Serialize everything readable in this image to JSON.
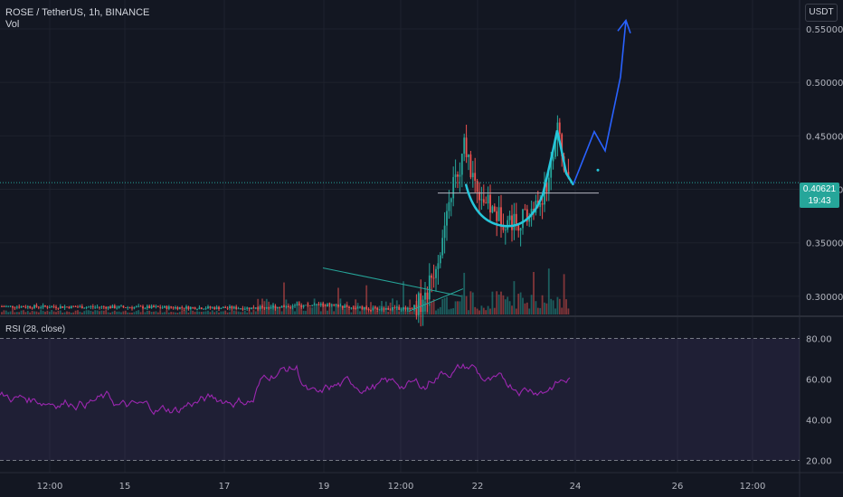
{
  "header": {
    "symbol": "ROSE / TetherUS, 1h, BINANCE",
    "volume_label": "Vol"
  },
  "currency_button": "USDT",
  "current_price": {
    "value": "0.40621",
    "countdown": "19:43"
  },
  "rsi_panel": {
    "label": "RSI (28, close)"
  },
  "colors": {
    "background": "#131722",
    "up": "#26a69a",
    "down": "#ef5350",
    "rsi_line": "#9c27b0",
    "drawing": "#2962ff",
    "cup": "#26c6da"
  },
  "chart_data": [
    {
      "type": "candlestick",
      "title": "ROSE / TetherUS, 1h, BINANCE",
      "y_ticks": [
        "0.30000",
        "0.35000",
        "0.40000",
        "0.45000",
        "0.50000",
        "0.55000"
      ],
      "x_ticks": [
        "12:00",
        "15",
        "17",
        "19",
        "12:00",
        "22",
        "24",
        "26",
        "12:00"
      ],
      "ylim": [
        0.283,
        0.577
      ],
      "current_price": 0.40621,
      "approx_close_path": [
        {
          "t": "19",
          "v": 0.29
        },
        {
          "t": "12:00",
          "v": 0.29
        },
        {
          "t": "21 late",
          "v": 0.42
        },
        {
          "t": "21 peak",
          "v": 0.46
        },
        {
          "t": "22",
          "v": 0.37
        },
        {
          "t": "23 peak",
          "v": 0.455
        },
        {
          "t": "23 end",
          "v": 0.406
        }
      ],
      "annotations": [
        "cup and handle",
        "projected breakout to ~0.55"
      ]
    },
    {
      "type": "line",
      "title": "RSI (28, close)",
      "y_ticks": [
        "20.00",
        "40.00",
        "60.00",
        "80.00"
      ],
      "ylim": [
        14,
        90
      ],
      "bands": [
        20,
        80
      ]
    }
  ]
}
